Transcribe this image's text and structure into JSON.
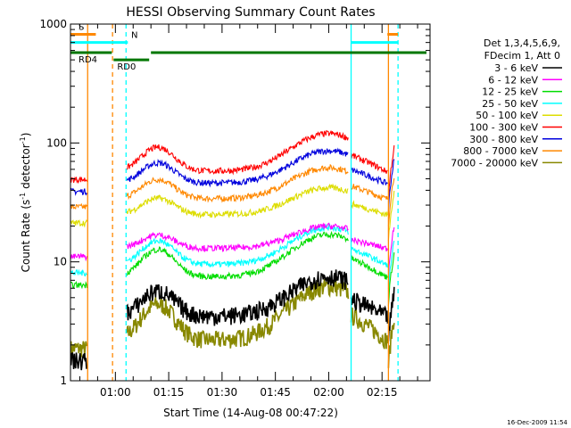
{
  "chart_data": {
    "type": "line",
    "title": "HESSI Observing Summary Count Rates",
    "xlabel": "Start Time (14-Aug-08 00:47:22)",
    "ylabel": "Count Rate (s",
    "ylabel_sup": "-1",
    "ylabel_rest": " detector",
    "ylabel_sup2": "-1",
    "ylabel_close": ")",
    "yscale": "log",
    "ylim": [
      1,
      1000
    ],
    "xlim_min": [
      47.37,
      148.5
    ],
    "x_tick_labels": [
      "01:00",
      "01:15",
      "01:30",
      "01:45",
      "02:00",
      "02:15"
    ],
    "x_tick_values": [
      60,
      75,
      90,
      105,
      120,
      135
    ],
    "y_tick_labels": [
      "1",
      "10",
      "100",
      "1000"
    ],
    "y_tick_values": [
      1,
      10,
      100,
      1000
    ],
    "legend_header": [
      "Det 1,3,4,5,6,9,",
      "FDecim 1, Att 0"
    ],
    "legend_position": "right",
    "timestamp": "16-Dec-2009 11:54",
    "series": [
      {
        "name": "3 - 6 keV",
        "color": "#000000",
        "base": 3.5,
        "amp": 4.0
      },
      {
        "name": "6 - 12 keV",
        "color": "#ff00ff",
        "base": 13,
        "amp": 7
      },
      {
        "name": "12 - 25 keV",
        "color": "#00dd00",
        "base": 7.5,
        "amp": 9.5
      },
      {
        "name": "25 - 50 keV",
        "color": "#00ffff",
        "base": 9.5,
        "amp": 10
      },
      {
        "name": "50 - 100 keV",
        "color": "#dddd00",
        "base": 25,
        "amp": 17
      },
      {
        "name": "100 - 300 keV",
        "color": "#ff0000",
        "base": 58,
        "amp": 62
      },
      {
        "name": "300 - 800 keV",
        "color": "#0000dd",
        "base": 46,
        "amp": 40
      },
      {
        "name": "800 - 7000 keV",
        "color": "#ff8800",
        "base": 34,
        "amp": 28
      },
      {
        "name": "7000 - 20000 keV",
        "color": "#888800",
        "base": 2.2,
        "amp": 4.0
      }
    ],
    "segments": [
      {
        "label": "S",
        "color": "#ff8800",
        "y": 820,
        "from": 47.37,
        "to": 54.5
      },
      {
        "label": "",
        "color": "#ff8800",
        "y": 820,
        "from": 136.5,
        "to": 139.5
      },
      {
        "label": "N",
        "color": "#00ffff",
        "y": 700,
        "from": 47.37,
        "to": 63.5
      },
      {
        "label": "",
        "color": "#00ffff",
        "y": 700,
        "from": 126.3,
        "to": 139.5
      },
      {
        "label": "RD4",
        "color": "#007700",
        "y": 575,
        "from": 47.37,
        "to": 59.0
      },
      {
        "label": "RD0",
        "color": "#007700",
        "y": 500,
        "from": 59.5,
        "to": 69.5
      },
      {
        "label": "",
        "color": "#007700",
        "y": 575,
        "from": 70.0,
        "to": 147.5
      }
    ],
    "vlines": [
      {
        "x": 52.2,
        "color": "#ff8800",
        "dash": false
      },
      {
        "x": 59.2,
        "color": "#ff8800",
        "dash": true
      },
      {
        "x": 63.0,
        "color": "#00ffff",
        "dash": true
      },
      {
        "x": 126.3,
        "color": "#00ffff",
        "dash": false
      },
      {
        "x": 136.8,
        "color": "#ff8800",
        "dash": false
      },
      {
        "x": 139.5,
        "color": "#00ffff",
        "dash": true
      }
    ]
  }
}
